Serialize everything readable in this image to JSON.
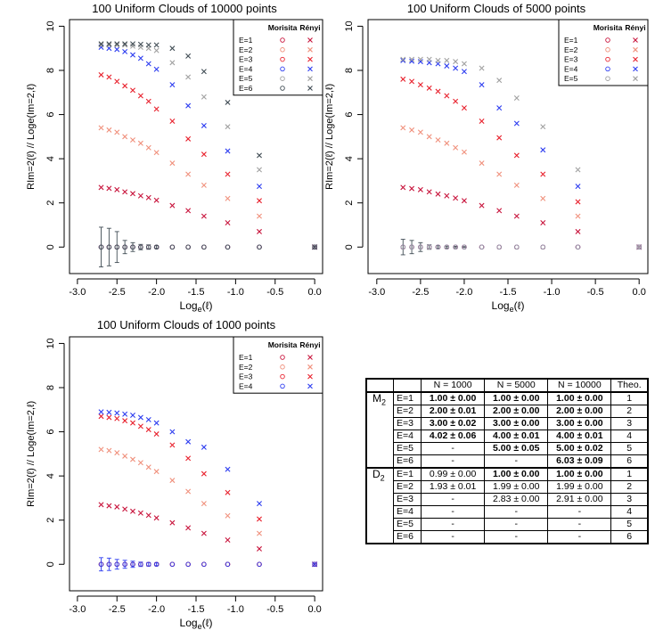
{
  "colors": {
    "E1": "#c8143c",
    "E2": "#f0907c",
    "E3": "#e8202c",
    "E4": "#2c3cf0",
    "E5": "#a0a0a0",
    "E6": "#404c54",
    "axis": "#000000"
  },
  "chart_data": [
    {
      "type": "scatter",
      "title": "100 Uniform Clouds of 10000 points",
      "xlabel": "Loge(ℓ)",
      "ylabel": "RIm=2(ℓ) // Loge(Im=2,ℓ)",
      "xlim": [
        -3.1,
        0.1
      ],
      "ylim": [
        -1.2,
        10.3
      ],
      "xticks": [
        "-3.0",
        "-2.5",
        "-2.0",
        "-1.5",
        "-1.0",
        "-0.5",
        "0.0"
      ],
      "yticks": [
        "0",
        "2",
        "4",
        "6",
        "8",
        "10"
      ],
      "legend": {
        "headers": [
          "Morisita",
          "Rényi"
        ],
        "entries": [
          "E=1",
          "E=2",
          "E=3",
          "E=4",
          "E=5",
          "E=6"
        ],
        "position": "top-right"
      },
      "x": [
        -2.7,
        -2.6,
        -2.5,
        -2.4,
        -2.3,
        -2.2,
        -2.1,
        -2.0,
        -1.8,
        -1.6,
        -1.4,
        -1.1,
        -0.7,
        0.0
      ],
      "morisita_errorbars": [
        0.9,
        0.85,
        0.7,
        0.3,
        0.2,
        0.12,
        0.1,
        0.06
      ],
      "series": [
        {
          "name": "E=1",
          "morisita": [
            0,
            0,
            0,
            0,
            0,
            0,
            0,
            0,
            0,
            0,
            0,
            0,
            0,
            0
          ],
          "renyi": [
            2.7,
            2.66,
            2.6,
            2.5,
            2.42,
            2.32,
            2.24,
            2.12,
            1.88,
            1.65,
            1.4,
            1.1,
            0.7,
            0
          ]
        },
        {
          "name": "E=2",
          "morisita": [
            0,
            0,
            0,
            0,
            0,
            0,
            0,
            0,
            0,
            0,
            0,
            0,
            0,
            0
          ],
          "renyi": [
            5.4,
            5.3,
            5.2,
            5.0,
            4.85,
            4.7,
            4.5,
            4.28,
            3.8,
            3.3,
            2.8,
            2.2,
            1.4,
            0
          ]
        },
        {
          "name": "E=3",
          "morisita": [
            0,
            0,
            0,
            0,
            0,
            0,
            0,
            0,
            0,
            0,
            0,
            0,
            0,
            0
          ],
          "renyi": [
            7.8,
            7.7,
            7.5,
            7.3,
            7.1,
            6.85,
            6.6,
            6.25,
            5.7,
            4.9,
            4.2,
            3.3,
            2.1,
            0
          ]
        },
        {
          "name": "E=4",
          "morisita": [
            0,
            0,
            0,
            0,
            0,
            0,
            0,
            0,
            0,
            0,
            0,
            0,
            0,
            0
          ],
          "renyi": [
            9.05,
            9.0,
            8.95,
            8.85,
            8.7,
            8.55,
            8.3,
            8.05,
            7.35,
            6.4,
            5.5,
            4.35,
            2.75,
            0
          ]
        },
        {
          "name": "E=5",
          "morisita": [
            0,
            0,
            0,
            0,
            0,
            0,
            0,
            0,
            0,
            0,
            0,
            0,
            0,
            0
          ],
          "renyi": [
            9.15,
            9.15,
            9.15,
            9.15,
            9.1,
            9.05,
            9.0,
            8.9,
            8.35,
            7.7,
            6.8,
            5.45,
            3.5,
            0
          ]
        },
        {
          "name": "E=6",
          "morisita": [
            0,
            0,
            0,
            0,
            0,
            0,
            0,
            0,
            0,
            0,
            0,
            0,
            0,
            0
          ],
          "renyi": [
            9.2,
            9.2,
            9.2,
            9.2,
            9.2,
            9.18,
            9.15,
            9.15,
            9.0,
            8.65,
            7.95,
            6.55,
            4.15,
            0
          ]
        }
      ]
    },
    {
      "type": "scatter",
      "title": "100 Uniform Clouds of 5000 points",
      "xlabel": "Loge(ℓ)",
      "ylabel": "RIm=2(ℓ) // Loge(Im=2,ℓ)",
      "xlim": [
        -3.1,
        0.1
      ],
      "ylim": [
        -1.2,
        10.3
      ],
      "xticks": [
        "-3.0",
        "-2.5",
        "-2.0",
        "-1.5",
        "-1.0",
        "-0.5",
        "0.0"
      ],
      "yticks": [
        "0",
        "2",
        "4",
        "6",
        "8",
        "10"
      ],
      "legend": {
        "headers": [
          "Morisita",
          "Rényi"
        ],
        "entries": [
          "E=1",
          "E=2",
          "E=3",
          "E=4",
          "E=5"
        ],
        "position": "top-right"
      },
      "x": [
        -2.7,
        -2.6,
        -2.5,
        -2.4,
        -2.3,
        -2.2,
        -2.1,
        -2.0,
        -1.8,
        -1.6,
        -1.4,
        -1.1,
        -0.7,
        0.0
      ],
      "morisita_errorbars": [
        0.35,
        0.3,
        0.2,
        0.1,
        0.06,
        0.04,
        0.03,
        0.02
      ],
      "series": [
        {
          "name": "E=1",
          "morisita": [
            0,
            0,
            0,
            0,
            0,
            0,
            0,
            0,
            0,
            0,
            0,
            0,
            0,
            0
          ],
          "renyi": [
            2.7,
            2.65,
            2.6,
            2.5,
            2.4,
            2.32,
            2.22,
            2.1,
            1.88,
            1.65,
            1.4,
            1.1,
            0.7,
            0
          ]
        },
        {
          "name": "E=2",
          "morisita": [
            0,
            0,
            0,
            0,
            0,
            0,
            0,
            0,
            0,
            0,
            0,
            0,
            0,
            0
          ],
          "renyi": [
            5.4,
            5.3,
            5.2,
            5.0,
            4.85,
            4.7,
            4.5,
            4.3,
            3.8,
            3.3,
            2.8,
            2.2,
            1.4,
            0
          ]
        },
        {
          "name": "E=3",
          "morisita": [
            0,
            0,
            0,
            0,
            0,
            0,
            0,
            0,
            0,
            0,
            0,
            0,
            0,
            0
          ],
          "renyi": [
            7.6,
            7.5,
            7.35,
            7.2,
            7.05,
            6.85,
            6.6,
            6.3,
            5.7,
            4.95,
            4.15,
            3.3,
            2.05,
            0
          ]
        },
        {
          "name": "E=4",
          "morisita": [
            0,
            0,
            0,
            0,
            0,
            0,
            0,
            0,
            0,
            0,
            0,
            0,
            0,
            0
          ],
          "renyi": [
            8.45,
            8.42,
            8.4,
            8.35,
            8.3,
            8.2,
            8.1,
            7.95,
            7.35,
            6.3,
            5.6,
            4.4,
            2.75,
            0
          ]
        },
        {
          "name": "E=5",
          "morisita": [
            0,
            0,
            0,
            0,
            0,
            0,
            0,
            0,
            0,
            0,
            0,
            0,
            0,
            0
          ],
          "renyi": [
            8.5,
            8.5,
            8.5,
            8.5,
            8.45,
            8.45,
            8.4,
            8.3,
            8.1,
            7.55,
            6.75,
            5.45,
            3.5,
            0
          ]
        }
      ]
    },
    {
      "type": "scatter",
      "title": "100 Uniform Clouds of 1000 points",
      "xlabel": "Loge(ℓ)",
      "ylabel": "RIm=2(ℓ) // Loge(Im=2,ℓ)",
      "xlim": [
        -3.1,
        0.1
      ],
      "ylim": [
        -1.2,
        10.3
      ],
      "xticks": [
        "-3.0",
        "-2.5",
        "-2.0",
        "-1.5",
        "-1.0",
        "-0.5",
        "0.0"
      ],
      "yticks": [
        "0",
        "2",
        "4",
        "6",
        "8",
        "10"
      ],
      "legend": {
        "headers": [
          "Morisita",
          "Rényi"
        ],
        "entries": [
          "E=1",
          "E=2",
          "E=3",
          "E=4"
        ],
        "position": "top-right"
      },
      "x": [
        -2.7,
        -2.6,
        -2.5,
        -2.4,
        -2.3,
        -2.2,
        -2.1,
        -2.0,
        -1.8,
        -1.6,
        -1.4,
        -1.1,
        -0.7,
        0.0
      ],
      "morisita_errorbars": [
        0.3,
        0.28,
        0.22,
        0.18,
        0.14,
        0.1,
        0.08,
        0.06
      ],
      "series": [
        {
          "name": "E=1",
          "morisita": [
            0,
            0,
            0,
            0,
            0,
            0,
            0,
            0,
            0,
            0,
            0,
            0,
            0,
            0
          ],
          "renyi": [
            2.7,
            2.65,
            2.6,
            2.5,
            2.4,
            2.32,
            2.22,
            2.1,
            1.88,
            1.65,
            1.4,
            1.1,
            0.7,
            0
          ]
        },
        {
          "name": "E=2",
          "morisita": [
            0,
            0,
            0,
            0,
            0,
            0,
            0,
            0,
            0,
            0,
            0,
            0,
            0,
            0
          ],
          "renyi": [
            5.2,
            5.15,
            5.05,
            4.9,
            4.75,
            4.6,
            4.4,
            4.2,
            3.8,
            3.3,
            2.75,
            2.2,
            1.4,
            0
          ]
        },
        {
          "name": "E=3",
          "morisita": [
            0,
            0,
            0,
            0,
            0,
            0,
            0,
            0,
            0,
            0,
            0,
            0,
            0,
            0
          ],
          "renyi": [
            6.7,
            6.65,
            6.6,
            6.5,
            6.4,
            6.25,
            6.1,
            5.9,
            5.4,
            4.8,
            4.1,
            3.25,
            2.05,
            0
          ]
        },
        {
          "name": "E=4",
          "morisita": [
            0,
            0,
            0,
            0,
            0,
            0,
            0,
            0,
            0,
            0,
            0,
            0,
            0,
            0
          ],
          "renyi": [
            6.9,
            6.88,
            6.85,
            6.8,
            6.75,
            6.65,
            6.55,
            6.4,
            6.0,
            5.55,
            5.3,
            4.3,
            2.75,
            0
          ]
        }
      ]
    },
    {
      "type": "table",
      "header": [
        "",
        "",
        "N = 1000",
        "N = 5000",
        "N = 10000",
        "Theo."
      ],
      "groups": [
        {
          "label": "M2",
          "rows": [
            {
              "e": "E=1",
              "cells": [
                "1.00 ± 0.00",
                "1.00 ± 0.00",
                "1.00 ± 0.00"
              ],
              "theo": "1"
            },
            {
              "e": "E=2",
              "cells": [
                "2.00 ± 0.01",
                "2.00 ± 0.00",
                "2.00 ± 0.00"
              ],
              "theo": "2"
            },
            {
              "e": "E=3",
              "cells": [
                "3.00 ± 0.02",
                "3.00 ± 0.00",
                "3.00 ± 0.00"
              ],
              "theo": "3"
            },
            {
              "e": "E=4",
              "cells": [
                "4.02 ± 0.06",
                "4.00 ± 0.01",
                "4.00 ± 0.01"
              ],
              "theo": "4"
            },
            {
              "e": "E=5",
              "cells": [
                "-",
                "5.00 ± 0.05",
                "5.00 ± 0.02"
              ],
              "theo": "5"
            },
            {
              "e": "E=6",
              "cells": [
                "-",
                "-",
                "6.03 ± 0.09"
              ],
              "theo": "6"
            }
          ]
        },
        {
          "label": "D2",
          "rows": [
            {
              "e": "E=1",
              "cells": [
                "0.99 ± 0.00",
                "1.00 ± 0.00",
                "1.00 ± 0.00"
              ],
              "theo": "1"
            },
            {
              "e": "E=2",
              "cells": [
                "1.93 ± 0.01",
                "1.99 ± 0.00",
                "1.99 ± 0.00"
              ],
              "theo": "2"
            },
            {
              "e": "E=3",
              "cells": [
                "-",
                "2.83 ± 0.00",
                "2.91 ± 0.00"
              ],
              "theo": "3"
            },
            {
              "e": "E=4",
              "cells": [
                "-",
                "-",
                "-"
              ],
              "theo": "4"
            },
            {
              "e": "E=5",
              "cells": [
                "-",
                "-",
                "-"
              ],
              "theo": "5"
            },
            {
              "e": "E=6",
              "cells": [
                "-",
                "-",
                "-"
              ],
              "theo": "6"
            }
          ]
        }
      ]
    }
  ]
}
